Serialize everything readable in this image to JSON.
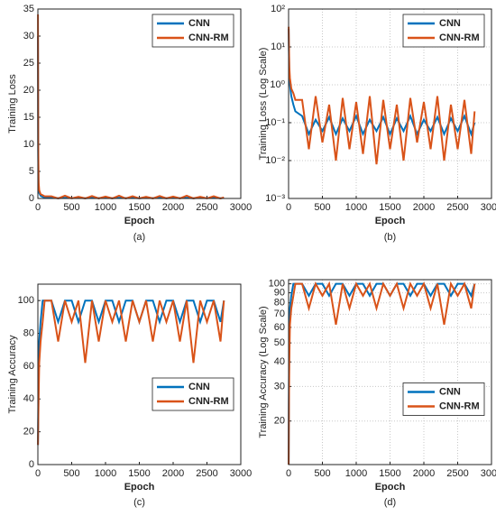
{
  "chart_data": [
    {
      "type": "line",
      "caption": "(a)",
      "x_label": "Epoch",
      "y_label": "Training Loss",
      "log_y": false,
      "grid": false,
      "legend": "upper right",
      "x": [
        1,
        5,
        10,
        20,
        40,
        70,
        100,
        200,
        300,
        400,
        500,
        600,
        700,
        800,
        900,
        1000,
        1100,
        1200,
        1300,
        1400,
        1500,
        1600,
        1700,
        1800,
        1900,
        2000,
        2100,
        2200,
        2300,
        2400,
        2500,
        2600,
        2700,
        2750
      ],
      "xlim": [
        0,
        3000
      ],
      "xticks": [
        0,
        500,
        1000,
        1500,
        2000,
        2500,
        3000
      ],
      "ylim": [
        0,
        35
      ],
      "yticks": [
        0,
        5,
        10,
        15,
        20,
        25,
        30,
        35
      ],
      "series": [
        {
          "name": "CNN",
          "color": "#0072BD",
          "values": [
            30,
            8,
            2,
            1,
            0.5,
            0.3,
            0.2,
            0.15,
            0.05,
            0.12,
            0.06,
            0.14,
            0.05,
            0.13,
            0.06,
            0.15,
            0.05,
            0.12,
            0.06,
            0.14,
            0.05,
            0.13,
            0.06,
            0.15,
            0.05,
            0.12,
            0.06,
            0.14,
            0.05,
            0.13,
            0.06,
            0.15,
            0.05,
            0.1
          ]
        },
        {
          "name": "CNN-RM",
          "color": "#D95319",
          "values": [
            34,
            10,
            3,
            1.5,
            0.8,
            0.6,
            0.4,
            0.4,
            0.02,
            0.5,
            0.03,
            0.3,
            0.01,
            0.45,
            0.02,
            0.35,
            0.015,
            0.5,
            0.008,
            0.4,
            0.02,
            0.3,
            0.01,
            0.45,
            0.03,
            0.35,
            0.02,
            0.5,
            0.01,
            0.3,
            0.02,
            0.4,
            0.015,
            0.2
          ]
        }
      ]
    },
    {
      "type": "line",
      "caption": "(b)",
      "x_label": "Epoch",
      "y_label": "Training Loss (Log Scale)",
      "log_y": true,
      "grid": true,
      "legend": "upper right",
      "x": [
        1,
        5,
        10,
        20,
        40,
        70,
        100,
        200,
        300,
        400,
        500,
        600,
        700,
        800,
        900,
        1000,
        1100,
        1200,
        1300,
        1400,
        1500,
        1600,
        1700,
        1800,
        1900,
        2000,
        2100,
        2200,
        2300,
        2400,
        2500,
        2600,
        2700,
        2750
      ],
      "xlim": [
        0,
        3000
      ],
      "xticks": [
        0,
        500,
        1000,
        1500,
        2000,
        2500,
        3000
      ],
      "ylim": [
        0.001,
        100
      ],
      "yticks": [
        {
          "value": 0.001,
          "label": "10⁻³"
        },
        {
          "value": 0.01,
          "label": "10⁻²"
        },
        {
          "value": 0.1,
          "label": "10⁻¹"
        },
        {
          "value": 1,
          "label": "10⁰"
        },
        {
          "value": 10,
          "label": "10¹"
        },
        {
          "value": 100,
          "label": "10²"
        }
      ],
      "series": [
        {
          "name": "CNN",
          "color": "#0072BD",
          "values": [
            30,
            8,
            2,
            1,
            0.5,
            0.3,
            0.2,
            0.15,
            0.05,
            0.12,
            0.06,
            0.14,
            0.05,
            0.13,
            0.06,
            0.15,
            0.05,
            0.12,
            0.06,
            0.14,
            0.05,
            0.13,
            0.06,
            0.15,
            0.05,
            0.12,
            0.06,
            0.14,
            0.05,
            0.13,
            0.06,
            0.15,
            0.05,
            0.1
          ]
        },
        {
          "name": "CNN-RM",
          "color": "#D95319",
          "values": [
            34,
            10,
            3,
            1.5,
            0.8,
            0.6,
            0.4,
            0.4,
            0.02,
            0.5,
            0.03,
            0.3,
            0.01,
            0.45,
            0.02,
            0.35,
            0.015,
            0.5,
            0.008,
            0.4,
            0.02,
            0.3,
            0.01,
            0.45,
            0.03,
            0.35,
            0.02,
            0.5,
            0.01,
            0.3,
            0.02,
            0.4,
            0.015,
            0.2
          ]
        }
      ]
    },
    {
      "type": "line",
      "caption": "(c)",
      "x_label": "Epoch",
      "y_label": "Training Accuracy",
      "log_y": false,
      "grid": false,
      "legend": "lower right",
      "x": [
        1,
        5,
        10,
        20,
        40,
        70,
        100,
        200,
        300,
        400,
        500,
        600,
        700,
        800,
        900,
        1000,
        1100,
        1200,
        1300,
        1400,
        1500,
        1600,
        1700,
        1800,
        1900,
        2000,
        2100,
        2200,
        2300,
        2400,
        2500,
        2600,
        2700,
        2750
      ],
      "xlim": [
        0,
        3000
      ],
      "xticks": [
        0,
        500,
        1000,
        1500,
        2000,
        2500,
        3000
      ],
      "ylim": [
        0,
        110
      ],
      "yticks": [
        0,
        20,
        40,
        60,
        80,
        100
      ],
      "series": [
        {
          "name": "CNN",
          "color": "#0072BD",
          "values": [
            12,
            30,
            50,
            75,
            87,
            100,
            100,
            100,
            87,
            100,
            100,
            87,
            100,
            100,
            87,
            100,
            100,
            87,
            100,
            100,
            87,
            100,
            100,
            87,
            100,
            100,
            87,
            100,
            100,
            87,
            100,
            100,
            87,
            100
          ]
        },
        {
          "name": "CNN-RM",
          "color": "#D95319",
          "values": [
            12,
            25,
            40,
            62,
            75,
            87,
            100,
            100,
            75,
            100,
            87,
            100,
            62,
            100,
            75,
            100,
            87,
            100,
            75,
            100,
            87,
            100,
            75,
            100,
            87,
            100,
            75,
            100,
            62,
            100,
            87,
            100,
            75,
            100
          ]
        }
      ]
    },
    {
      "type": "line",
      "caption": "(d)",
      "x_label": "Epoch",
      "y_label": "Training Accuracy (Log Scale)",
      "log_y": true,
      "grid": true,
      "legend": "center right",
      "x": [
        1,
        5,
        10,
        20,
        40,
        70,
        100,
        200,
        300,
        400,
        500,
        600,
        700,
        800,
        900,
        1000,
        1100,
        1200,
        1300,
        1400,
        1500,
        1600,
        1700,
        1800,
        1900,
        2000,
        2100,
        2200,
        2300,
        2400,
        2500,
        2600,
        2700,
        2750
      ],
      "xlim": [
        0,
        3000
      ],
      "xticks": [
        0,
        500,
        1000,
        1500,
        2000,
        2500,
        3000
      ],
      "ylim": [
        12,
        105
      ],
      "yticks": [
        20,
        30,
        40,
        50,
        60,
        70,
        80,
        90,
        100
      ],
      "series": [
        {
          "name": "CNN",
          "color": "#0072BD",
          "values": [
            12,
            30,
            50,
            75,
            87,
            100,
            100,
            100,
            87,
            100,
            100,
            87,
            100,
            100,
            87,
            100,
            100,
            87,
            100,
            100,
            87,
            100,
            100,
            87,
            100,
            100,
            87,
            100,
            100,
            87,
            100,
            100,
            87,
            100
          ]
        },
        {
          "name": "CNN-RM",
          "color": "#D95319",
          "values": [
            12,
            25,
            40,
            62,
            75,
            87,
            100,
            100,
            75,
            100,
            87,
            100,
            62,
            100,
            75,
            100,
            87,
            100,
            75,
            100,
            87,
            100,
            75,
            100,
            87,
            100,
            75,
            100,
            62,
            100,
            87,
            100,
            75,
            100
          ]
        }
      ]
    }
  ]
}
